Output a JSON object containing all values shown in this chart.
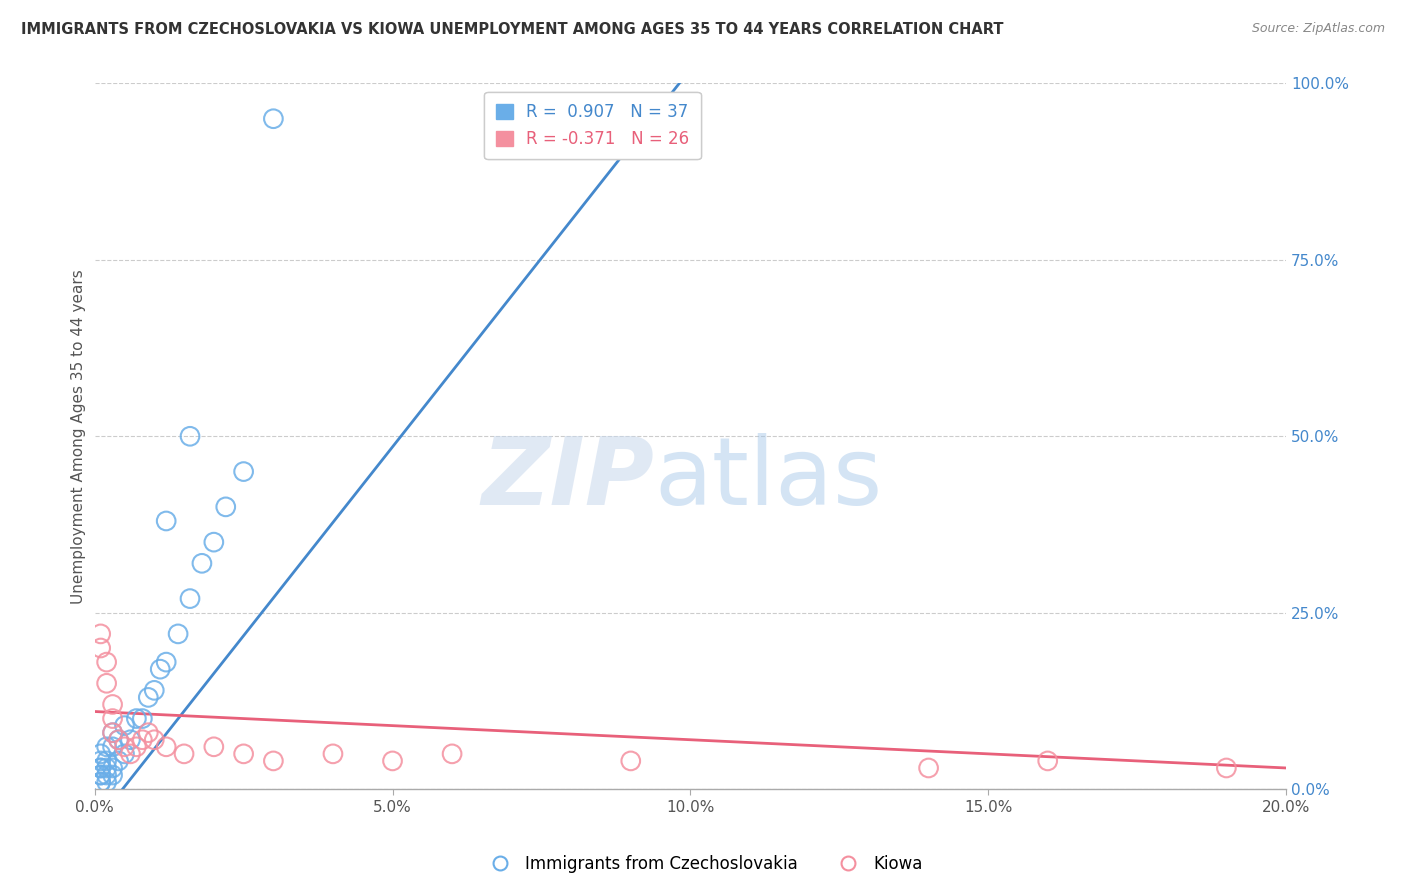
{
  "title": "IMMIGRANTS FROM CZECHOSLOVAKIA VS KIOWA UNEMPLOYMENT AMONG AGES 35 TO 44 YEARS CORRELATION CHART",
  "source": "Source: ZipAtlas.com",
  "ylabel": "Unemployment Among Ages 35 to 44 years",
  "xlim": [
    0.0,
    0.2
  ],
  "ylim": [
    0.0,
    1.0
  ],
  "xtick_labels": [
    "0.0%",
    "5.0%",
    "10.0%",
    "15.0%",
    "20.0%"
  ],
  "xtick_values": [
    0.0,
    0.05,
    0.1,
    0.15,
    0.2
  ],
  "ytick_labels": [
    "100.0%",
    "75.0%",
    "50.0%",
    "25.0%",
    "0.0%"
  ],
  "ytick_values": [
    1.0,
    0.75,
    0.5,
    0.25,
    0.0
  ],
  "blue_R": 0.907,
  "blue_N": 37,
  "pink_R": -0.371,
  "pink_N": 26,
  "blue_color": "#6aaee8",
  "pink_color": "#f4909f",
  "blue_line_color": "#4488cc",
  "pink_line_color": "#e8607a",
  "legend_label_blue": "Immigrants from Czechoslovakia",
  "legend_label_pink": "Kiowa",
  "watermark_zip": "ZIP",
  "watermark_atlas": "atlas",
  "background_color": "#ffffff",
  "grid_color": "#cccccc",
  "title_color": "#333333",
  "source_color": "#888888",
  "blue_scatter_x": [
    0.001,
    0.001,
    0.001,
    0.001,
    0.001,
    0.001,
    0.001,
    0.001,
    0.002,
    0.002,
    0.002,
    0.002,
    0.002,
    0.003,
    0.003,
    0.003,
    0.003,
    0.004,
    0.004,
    0.005,
    0.005,
    0.006,
    0.007,
    0.008,
    0.009,
    0.01,
    0.011,
    0.012,
    0.014,
    0.016,
    0.018,
    0.02,
    0.022,
    0.025,
    0.012,
    0.016,
    0.03
  ],
  "blue_scatter_y": [
    0.01,
    0.01,
    0.02,
    0.02,
    0.03,
    0.03,
    0.04,
    0.05,
    0.01,
    0.02,
    0.03,
    0.04,
    0.06,
    0.02,
    0.03,
    0.06,
    0.08,
    0.04,
    0.07,
    0.05,
    0.09,
    0.07,
    0.1,
    0.1,
    0.13,
    0.14,
    0.17,
    0.18,
    0.22,
    0.27,
    0.32,
    0.35,
    0.4,
    0.45,
    0.38,
    0.5,
    0.95
  ],
  "pink_scatter_x": [
    0.001,
    0.001,
    0.002,
    0.002,
    0.003,
    0.003,
    0.004,
    0.005,
    0.006,
    0.007,
    0.008,
    0.009,
    0.01,
    0.012,
    0.015,
    0.02,
    0.025,
    0.03,
    0.04,
    0.05,
    0.06,
    0.09,
    0.14,
    0.16,
    0.19,
    0.003
  ],
  "pink_scatter_y": [
    0.2,
    0.22,
    0.18,
    0.15,
    0.1,
    0.08,
    0.07,
    0.06,
    0.05,
    0.06,
    0.07,
    0.08,
    0.07,
    0.06,
    0.05,
    0.06,
    0.05,
    0.04,
    0.05,
    0.04,
    0.05,
    0.04,
    0.03,
    0.04,
    0.03,
    0.12
  ],
  "blue_line_x": [
    0.0,
    0.1
  ],
  "blue_line_y": [
    -0.05,
    1.02
  ],
  "pink_line_x": [
    0.0,
    0.2
  ],
  "pink_line_y": [
    0.11,
    0.03
  ]
}
